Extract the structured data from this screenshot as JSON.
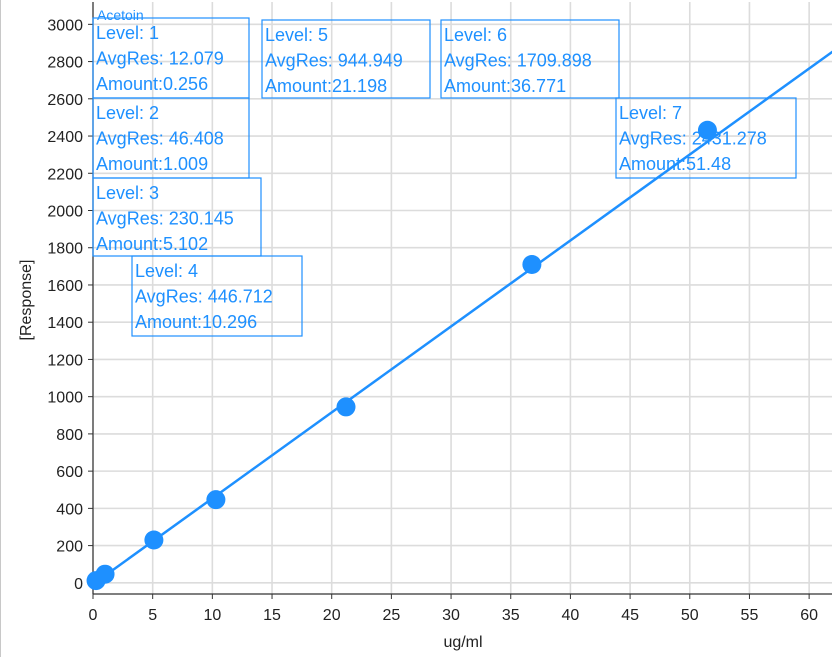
{
  "chart_data": {
    "type": "scatter",
    "title": "Acetoin",
    "xlabel": "ug/ml",
    "ylabel": "[Response]",
    "xlim": [
      0,
      62
    ],
    "ylim": [
      -60,
      3120
    ],
    "x_ticks": [
      "0",
      "5",
      "10",
      "15",
      "20",
      "25",
      "30",
      "35",
      "40",
      "45",
      "50",
      "55",
      "60"
    ],
    "y_ticks": [
      "0",
      "200",
      "400",
      "600",
      "800",
      "1000",
      "1200",
      "1400",
      "1600",
      "1800",
      "2000",
      "2200",
      "2400",
      "2600",
      "2800",
      "3000"
    ],
    "grid": true,
    "points": [
      {
        "x": 0.256,
        "y": 12.079
      },
      {
        "x": 1.009,
        "y": 46.408
      },
      {
        "x": 5.102,
        "y": 230.145
      },
      {
        "x": 10.296,
        "y": 446.712
      },
      {
        "x": 21.198,
        "y": 944.949
      },
      {
        "x": 36.771,
        "y": 1709.898
      },
      {
        "x": 51.48,
        "y": 2431.278
      }
    ],
    "fit_line": {
      "x": [
        0,
        62
      ],
      "y": [
        -8,
        2855
      ]
    },
    "annotations": [
      {
        "lines": [
          "Level: 1",
          "AvgRes: 12.079",
          "Amount:0.256"
        ]
      },
      {
        "lines": [
          "Level: 2",
          "AvgRes: 46.408",
          "Amount:1.009"
        ]
      },
      {
        "lines": [
          "Level: 3",
          "AvgRes: 230.145",
          "Amount:5.102"
        ]
      },
      {
        "lines": [
          "Level: 4",
          "AvgRes: 446.712",
          "Amount:10.296"
        ]
      },
      {
        "lines": [
          "Level: 5",
          "AvgRes: 944.949",
          "Amount:21.198"
        ]
      },
      {
        "lines": [
          "Level: 6",
          "AvgRes: 1709.898",
          "Amount:36.771"
        ]
      },
      {
        "lines": [
          "Level: 7",
          "AvgRes: 2431.278",
          "Amount:51.48"
        ]
      }
    ],
    "colors": {
      "series": "#1e90ff",
      "grid": "#dcdcdc",
      "text": "#222222"
    }
  }
}
